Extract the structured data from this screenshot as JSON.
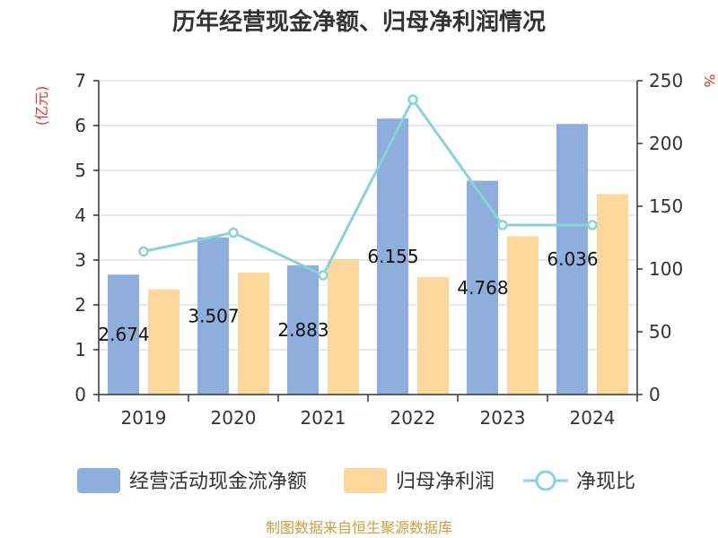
{
  "chart_data": {
    "type": "bar",
    "title": "历年经营现金净额、归母净利润情况",
    "categories": [
      "2019",
      "2020",
      "2021",
      "2022",
      "2023",
      "2024"
    ],
    "y_left": {
      "unit": "(亿元)",
      "ylim": [
        0,
        7
      ],
      "ticks": [
        "0",
        "1",
        "2",
        "3",
        "4",
        "5",
        "6",
        "7"
      ]
    },
    "y_right": {
      "unit": "%",
      "ylim": [
        0,
        250
      ],
      "ticks": [
        "0",
        "50",
        "100",
        "150",
        "200",
        "250"
      ]
    },
    "series": [
      {
        "name": "经营活动现金流净额",
        "kind": "bar",
        "axis": "left",
        "color": "#8eaedb",
        "values": [
          2.674,
          3.507,
          2.883,
          6.155,
          4.768,
          6.036
        ],
        "labels": [
          "2.674",
          "3.507",
          "2.883",
          "6.155",
          "4.768",
          "6.036"
        ]
      },
      {
        "name": "归母净利润",
        "kind": "bar",
        "axis": "left",
        "color": "#fdd89a",
        "values": [
          2.35,
          2.72,
          3.02,
          2.62,
          3.53,
          4.47
        ]
      },
      {
        "name": "净现比",
        "kind": "line",
        "axis": "right",
        "color": "#88d3d8",
        "values": [
          114,
          129,
          95,
          235,
          135,
          135
        ]
      }
    ],
    "grid": true,
    "legend_position": "bottom"
  },
  "unit_color": "#d9372a",
  "source_text": "制图数据来自恒生聚源数据库",
  "source_color": "#c8a13f"
}
